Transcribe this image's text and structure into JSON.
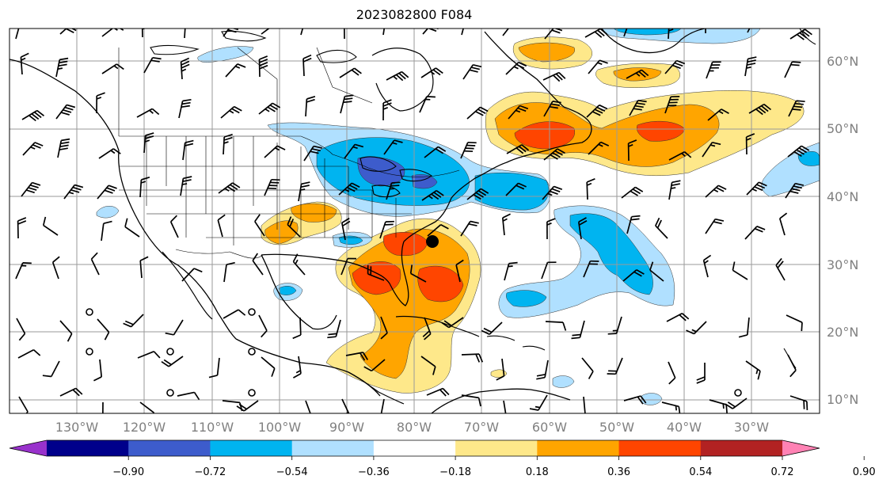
{
  "title": "2023082800 F084",
  "map": {
    "lat_labels": [
      "60°N",
      "50°N",
      "40°N",
      "30°N",
      "20°N",
      "10°N"
    ],
    "lon_labels": [
      "130°W",
      "120°W",
      "110°W",
      "100°W",
      "90°W",
      "80°W",
      "70°W",
      "60°W",
      "50°W",
      "40°W",
      "30°W"
    ],
    "colors": {
      "strong_neg": "#3d5ccc",
      "mod_neg": "#00b4f0",
      "weak_neg": "#b0e0ff",
      "weak_pos": "#fee88a",
      "mod_pos": "#ffa500",
      "strong_pos": "#ff4500"
    }
  },
  "colorbar": {
    "ticks": [
      "−0.90",
      "−0.72",
      "−0.54",
      "−0.36",
      "−0.18",
      "0.18",
      "0.36",
      "0.54",
      "0.72",
      "0.90"
    ],
    "colors": [
      "#9932cc",
      "#00008b",
      "#3d5ccc",
      "#00b4f0",
      "#b0e0ff",
      "#ffffff",
      "#fee88a",
      "#ffa500",
      "#ff4500",
      "#b22222",
      "#ff82b4"
    ]
  }
}
